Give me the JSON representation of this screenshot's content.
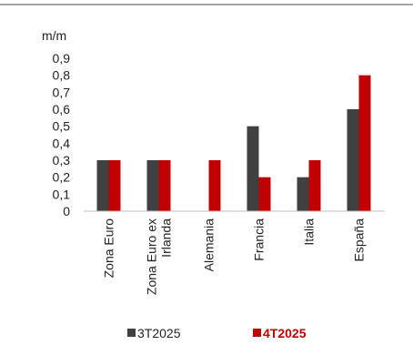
{
  "chart_data": {
    "type": "bar",
    "unit_label": "m/m",
    "categories": [
      "Zona Euro",
      "Zona Euro ex|Irlanda",
      "Alemania",
      "Francia",
      "Italia",
      "España"
    ],
    "series": [
      {
        "name": "3T2025",
        "color": "#404040",
        "values": [
          0.3,
          0.3,
          null,
          0.5,
          0.2,
          0.6
        ]
      },
      {
        "name": "4T2025",
        "color": "#c00000",
        "values": [
          0.3,
          0.3,
          0.3,
          0.2,
          0.3,
          0.8
        ]
      }
    ],
    "ylim": [
      0,
      0.9
    ],
    "yticks": [
      "0",
      "0,1",
      "0,2",
      "0,3",
      "0,4",
      "0,5",
      "0,6",
      "0,7",
      "0,8",
      "0,9"
    ],
    "grid": false,
    "legend_position": "bottom"
  },
  "colors": {
    "top_rule": "#a6a6a6",
    "axis": "#bfbfbf"
  }
}
